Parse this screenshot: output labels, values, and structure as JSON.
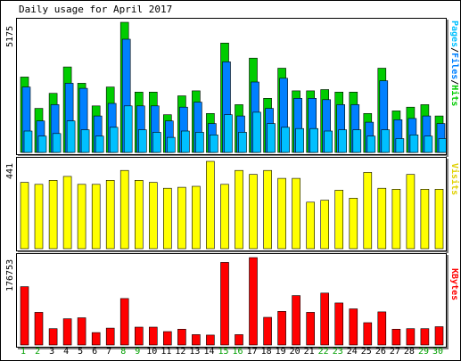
{
  "title": "Daily usage for April 2017",
  "colors": {
    "hits": "#00cc00",
    "files": "#0080ff",
    "pages": "#00c0ff",
    "visits": "#ffff00",
    "kbytes": "#ff0000",
    "weekend_label": "#00a000",
    "weekday_label": "#000000"
  },
  "chart_data": [
    {
      "type": "bar",
      "title": "Daily usage for April 2017",
      "categories": [
        "1",
        "2",
        "3",
        "4",
        "5",
        "6",
        "7",
        "8",
        "9",
        "10",
        "11",
        "12",
        "13",
        "14",
        "15",
        "16",
        "17",
        "18",
        "19",
        "20",
        "21",
        "22",
        "23",
        "24",
        "25",
        "26",
        "27",
        "28",
        "29",
        "30"
      ],
      "weekend_days": [
        "1",
        "2",
        "8",
        "9",
        "15",
        "16",
        "22",
        "23",
        "29",
        "30"
      ],
      "ymax_label": "5175",
      "ylim": [
        0,
        5175
      ],
      "side_label": {
        "pages": "Pages",
        "files": "Files",
        "hits": "Hits",
        "sep": "/"
      },
      "series": [
        {
          "name": "Hits",
          "values": [
            3000,
            1750,
            2350,
            3400,
            2750,
            1850,
            2600,
            5175,
            2400,
            2400,
            1500,
            2250,
            2450,
            1550,
            4350,
            1900,
            3750,
            2150,
            3350,
            2450,
            2450,
            2500,
            2400,
            2400,
            1550,
            3350,
            1650,
            1800,
            1900,
            1450
          ]
        },
        {
          "name": "Files",
          "values": [
            2600,
            1250,
            1900,
            2750,
            2550,
            1450,
            1950,
            4500,
            1850,
            1850,
            1250,
            1800,
            2000,
            1150,
            3600,
            1450,
            2800,
            1750,
            2950,
            2150,
            2150,
            2100,
            1900,
            1900,
            1200,
            2850,
            1300,
            1350,
            1450,
            1150
          ]
        },
        {
          "name": "Pages",
          "values": [
            850,
            650,
            750,
            1250,
            900,
            650,
            1000,
            1850,
            900,
            800,
            600,
            850,
            800,
            700,
            1500,
            800,
            1600,
            1150,
            1000,
            950,
            950,
            850,
            900,
            900,
            650,
            900,
            550,
            700,
            650,
            550
          ]
        }
      ]
    },
    {
      "type": "bar",
      "categories": [
        "1",
        "2",
        "3",
        "4",
        "5",
        "6",
        "7",
        "8",
        "9",
        "10",
        "11",
        "12",
        "13",
        "14",
        "15",
        "16",
        "17",
        "18",
        "19",
        "20",
        "21",
        "22",
        "23",
        "24",
        "25",
        "26",
        "27",
        "28",
        "29",
        "30"
      ],
      "ymax_label": "441",
      "ylim": [
        0,
        441
      ],
      "side_label": "Visits",
      "series": [
        {
          "name": "Visits",
          "values": [
            335,
            325,
            345,
            365,
            325,
            325,
            345,
            395,
            345,
            335,
            305,
            310,
            315,
            441,
            325,
            395,
            375,
            395,
            355,
            355,
            235,
            245,
            295,
            255,
            385,
            305,
            300,
            375,
            300,
            300
          ]
        }
      ]
    },
    {
      "type": "bar",
      "categories": [
        "1",
        "2",
        "3",
        "4",
        "5",
        "6",
        "7",
        "8",
        "9",
        "10",
        "11",
        "12",
        "13",
        "14",
        "15",
        "16",
        "17",
        "18",
        "19",
        "20",
        "21",
        "22",
        "23",
        "24",
        "25",
        "26",
        "27",
        "28",
        "29",
        "30"
      ],
      "ymax_label": "176753",
      "ylim": [
        0,
        176753
      ],
      "side_label": "KBytes",
      "series": [
        {
          "name": "KBytes",
          "values": [
            118000,
            66000,
            33000,
            53000,
            55000,
            25000,
            34000,
            94000,
            36000,
            36000,
            27000,
            32000,
            21000,
            20000,
            167000,
            21000,
            176753,
            56000,
            68000,
            100000,
            66000,
            105000,
            85000,
            73000,
            45000,
            67000,
            32000,
            33000,
            33000,
            37000
          ]
        }
      ]
    }
  ]
}
